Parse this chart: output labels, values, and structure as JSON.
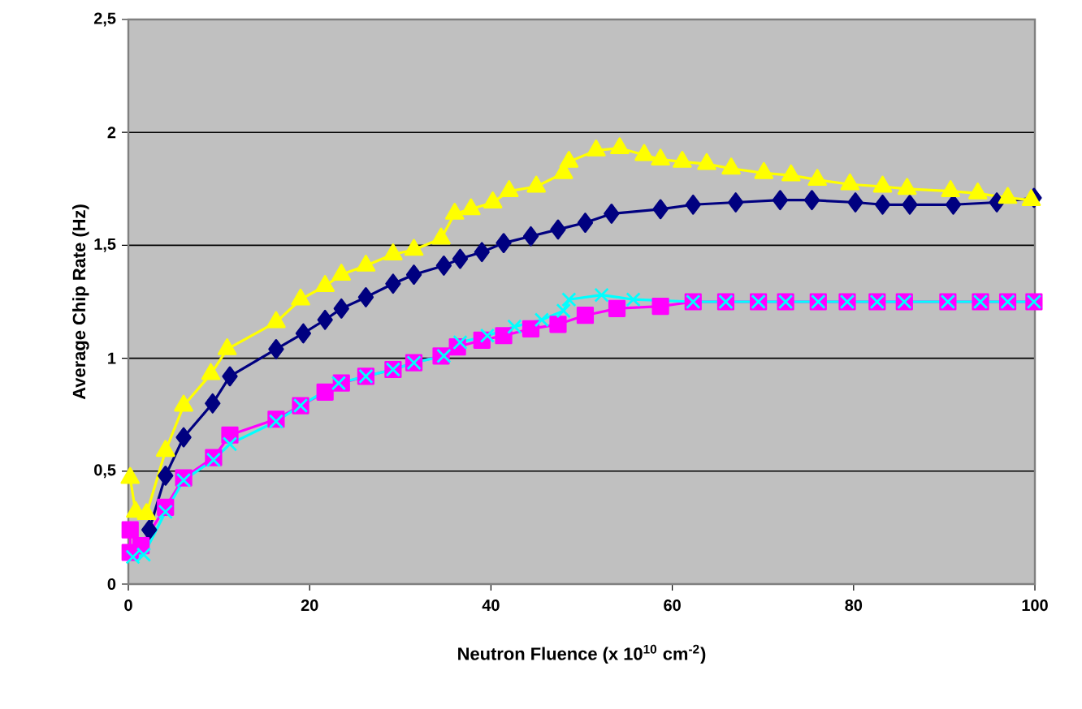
{
  "chart_data": {
    "type": "line",
    "xlabel": "Neutron Fluence (x 10$^{10}$ cm$^{-2}$)",
    "ylabel": "Average Chip Rate (Hz)",
    "xlim": [
      0,
      100
    ],
    "xticks": [
      0,
      20,
      40,
      60,
      80,
      100
    ],
    "ylim": [
      0,
      2.5
    ],
    "yticks": [
      0,
      {
        "value": 0.5,
        "label": "0,5"
      },
      1,
      {
        "value": 1.5,
        "label": "1,5"
      },
      2,
      {
        "value": 2.5,
        "label": "2,5"
      }
    ],
    "grid": "y",
    "series": [
      {
        "color": "#000080",
        "marker": "diamond",
        "x": [
          2.3,
          4.1,
          6.1,
          9.3,
          11.2,
          16.3,
          19.3,
          21.7,
          23.5,
          26.2,
          29.2,
          31.5,
          34.8,
          36.6,
          39,
          41.4,
          44.4,
          47.4,
          50.4,
          53.3,
          58.7,
          62.3,
          67,
          71.9,
          75.4,
          80.2,
          83.2,
          86.2,
          91,
          95.8,
          99.9
        ],
        "values": [
          0.24,
          0.48,
          0.65,
          0.8,
          0.92,
          1.04,
          1.11,
          1.17,
          1.22,
          1.27,
          1.33,
          1.37,
          1.41,
          1.44,
          1.47,
          1.51,
          1.54,
          1.57,
          1.6,
          1.64,
          1.66,
          1.68,
          1.69,
          1.7,
          1.7,
          1.69,
          1.68,
          1.68,
          1.68,
          1.69,
          1.71
        ]
      },
      {
        "color": "#ff00ff",
        "marker": "square",
        "x": [
          0.2,
          0.2,
          1.4,
          4.1,
          6.1,
          9.4,
          11.2,
          16.3,
          19,
          21.7,
          23.5,
          26.2,
          29.2,
          31.5,
          34.5,
          36.3,
          39,
          41.4,
          44.4,
          47.4,
          50.4,
          53.9,
          58.7,
          62.3,
          65.9,
          69.5,
          72.5,
          76.1,
          79.3,
          82.6,
          85.6,
          90.4,
          94,
          97,
          99.9
        ],
        "values": [
          0.24,
          0.14,
          0.17,
          0.34,
          0.47,
          0.56,
          0.66,
          0.73,
          0.79,
          0.85,
          0.89,
          0.92,
          0.95,
          0.98,
          1.01,
          1.05,
          1.08,
          1.1,
          1.13,
          1.15,
          1.19,
          1.22,
          1.23,
          1.25,
          1.25,
          1.25,
          1.25,
          1.25,
          1.25,
          1.25,
          1.25,
          1.25,
          1.25,
          1.25,
          1.25
        ]
      },
      {
        "color": "#ffff00",
        "marker": "triangle",
        "x": [
          0.2,
          0.8,
          2,
          4.1,
          6.1,
          9.1,
          10.9,
          16.3,
          19,
          21.7,
          23.5,
          26.2,
          29.2,
          31.5,
          34.5,
          36,
          37.8,
          40.2,
          42,
          45,
          48,
          48.6,
          51.6,
          54.2,
          56.9,
          58.7,
          61.1,
          63.8,
          66.5,
          70.1,
          73.1,
          76,
          79.6,
          83.2,
          85.9,
          90.7,
          93.7,
          97,
          99.6
        ],
        "values": [
          0.47,
          0.32,
          0.31,
          0.59,
          0.79,
          0.93,
          1.04,
          1.16,
          1.26,
          1.32,
          1.37,
          1.41,
          1.46,
          1.48,
          1.53,
          1.64,
          1.66,
          1.69,
          1.74,
          1.76,
          1.82,
          1.87,
          1.92,
          1.93,
          1.9,
          1.88,
          1.87,
          1.86,
          1.84,
          1.82,
          1.81,
          1.79,
          1.77,
          1.76,
          1.75,
          1.74,
          1.73,
          1.71,
          1.7
        ]
      },
      {
        "color": "#00ffff",
        "marker": "cross",
        "x": [
          0.5,
          1.7,
          4.1,
          6.1,
          9.4,
          11.2,
          16.3,
          19,
          23.2,
          26.2,
          29.2,
          31.5,
          34.8,
          36.6,
          39.6,
          42.6,
          45.6,
          48,
          48.6,
          52.2,
          55.7,
          62.3,
          65.9,
          69.5,
          72.5,
          76.1,
          79.3,
          82.6,
          85.6,
          90.4,
          94,
          97,
          99.9
        ],
        "values": [
          0.12,
          0.13,
          0.32,
          0.46,
          0.55,
          0.62,
          0.72,
          0.79,
          0.89,
          0.92,
          0.95,
          0.98,
          1.01,
          1.07,
          1.1,
          1.14,
          1.17,
          1.21,
          1.26,
          1.28,
          1.26,
          1.25,
          1.25,
          1.25,
          1.25,
          1.25,
          1.25,
          1.25,
          1.25,
          1.25,
          1.25,
          1.25,
          1.25
        ]
      }
    ]
  }
}
